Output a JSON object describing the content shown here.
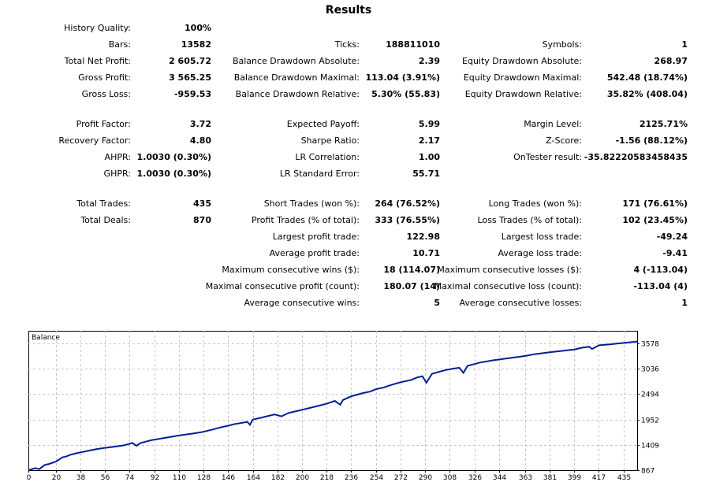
{
  "title": "Results",
  "stats": [
    {
      "label": "History Quality:",
      "value": "100%",
      "col": 0,
      "row": 0
    },
    {
      "label": "Bars:",
      "value": "13582",
      "col": 0,
      "row": 1
    },
    {
      "label": "Ticks:",
      "value": "188811010",
      "col": 1,
      "row": 1
    },
    {
      "label": "Symbols:",
      "value": "1",
      "col": 2,
      "row": 1
    },
    {
      "label": "Total Net Profit:",
      "value": "2 605.72",
      "col": 0,
      "row": 2
    },
    {
      "label": "Balance Drawdown Absolute:",
      "value": "2.39",
      "col": 1,
      "row": 2
    },
    {
      "label": "Equity Drawdown Absolute:",
      "value": "268.97",
      "col": 2,
      "row": 2
    },
    {
      "label": "Gross Profit:",
      "value": "3 565.25",
      "col": 0,
      "row": 3
    },
    {
      "label": "Balance Drawdown Maximal:",
      "value": "113.04 (3.91%)",
      "col": 1,
      "row": 3
    },
    {
      "label": "Equity Drawdown Maximal:",
      "value": "542.48 (18.74%)",
      "col": 2,
      "row": 3
    },
    {
      "label": "Gross Loss:",
      "value": "-959.53",
      "col": 0,
      "row": 4
    },
    {
      "label": "Balance Drawdown Relative:",
      "value": "5.30% (55.83)",
      "col": 1,
      "row": 4
    },
    {
      "label": "Equity Drawdown Relative:",
      "value": "35.82% (408.04)",
      "col": 2,
      "row": 4
    },
    {
      "label": "Profit Factor:",
      "value": "3.72",
      "col": 0,
      "row": 6
    },
    {
      "label": "Expected Payoff:",
      "value": "5.99",
      "col": 1,
      "row": 6
    },
    {
      "label": "Margin Level:",
      "value": "2125.71%",
      "col": 2,
      "row": 6
    },
    {
      "label": "Recovery Factor:",
      "value": "4.80",
      "col": 0,
      "row": 7
    },
    {
      "label": "Sharpe Ratio:",
      "value": "2.17",
      "col": 1,
      "row": 7
    },
    {
      "label": "Z-Score:",
      "value": "-1.56 (88.12%)",
      "col": 2,
      "row": 7
    },
    {
      "label": "AHPR:",
      "value": "1.0030 (0.30%)",
      "col": 0,
      "row": 8
    },
    {
      "label": "LR Correlation:",
      "value": "1.00",
      "col": 1,
      "row": 8
    },
    {
      "label": "OnTester result:",
      "value": "-35.82220583458435",
      "col": 2,
      "row": 8
    },
    {
      "label": "GHPR:",
      "value": "1.0030 (0.30%)",
      "col": 0,
      "row": 9
    },
    {
      "label": "LR Standard Error:",
      "value": "55.71",
      "col": 1,
      "row": 9
    },
    {
      "label": "Total Trades:",
      "value": "435",
      "col": 0,
      "row": 11
    },
    {
      "label": "Short Trades (won %):",
      "value": "264 (76.52%)",
      "col": 1,
      "row": 11
    },
    {
      "label": "Long Trades (won %):",
      "value": "171 (76.61%)",
      "col": 2,
      "row": 11
    },
    {
      "label": "Total Deals:",
      "value": "870",
      "col": 0,
      "row": 12
    },
    {
      "label": "Profit Trades (% of total):",
      "value": "333 (76.55%)",
      "col": 1,
      "row": 12
    },
    {
      "label": "Loss Trades (% of total):",
      "value": "102 (23.45%)",
      "col": 2,
      "row": 12
    },
    {
      "label": "Largest profit trade:",
      "value": "122.98",
      "col": 1,
      "row": 13
    },
    {
      "label": "Largest loss trade:",
      "value": "-49.24",
      "col": 2,
      "row": 13
    },
    {
      "label": "Average profit trade:",
      "value": "10.71",
      "col": 1,
      "row": 14
    },
    {
      "label": "Average loss trade:",
      "value": "-9.41",
      "col": 2,
      "row": 14
    },
    {
      "label": "Maximum consecutive wins ($):",
      "value": "18 (114.07)",
      "col": 1,
      "row": 15
    },
    {
      "label": "Maximum consecutive losses ($):",
      "value": "4 (-113.04)",
      "col": 2,
      "row": 15
    },
    {
      "label": "Maximal consecutive profit (count):",
      "value": "180.07 (14)",
      "col": 1,
      "row": 16
    },
    {
      "label": "Maximal consecutive loss (count):",
      "value": "-113.04 (4)",
      "col": 2,
      "row": 16
    },
    {
      "label": "Average consecutive wins:",
      "value": "5",
      "col": 1,
      "row": 17
    },
    {
      "label": "Average consecutive losses:",
      "value": "1",
      "col": 2,
      "row": 17
    }
  ],
  "chart_data": {
    "type": "line",
    "title": "Balance",
    "xlabel": "",
    "ylabel": "",
    "x_ticks": [
      0,
      20,
      38,
      56,
      74,
      92,
      110,
      128,
      146,
      164,
      182,
      200,
      218,
      236,
      254,
      272,
      290,
      308,
      326,
      344,
      363,
      381,
      399,
      417,
      435
    ],
    "y_ticks": [
      867,
      1409,
      1952,
      2494,
      3036,
      3578
    ],
    "xlim": [
      0,
      445
    ],
    "ylim": [
      867,
      3850
    ],
    "grid": true,
    "line_color": "#001e96",
    "series": [
      {
        "x": [
          0,
          5,
          8,
          12,
          15,
          20,
          25,
          28,
          30,
          35,
          40,
          45,
          50,
          55,
          60,
          65,
          70,
          76,
          79,
          82,
          90,
          100,
          110,
          120,
          128,
          135,
          140,
          146,
          150,
          160,
          162,
          164,
          170,
          180,
          185,
          190,
          200,
          210,
          218,
          224,
          228,
          230,
          236,
          245,
          250,
          254,
          260,
          265,
          272,
          280,
          284,
          288,
          291,
          295,
          300,
          305,
          310,
          315,
          318,
          321,
          325,
          330,
          340,
          350,
          363,
          370,
          381,
          390,
          399,
          405,
          410,
          412,
          417,
          425,
          430,
          435,
          445
        ],
        "y": [
          867,
          910,
          890,
          980,
          1000,
          1050,
          1145,
          1165,
          1190,
          1230,
          1260,
          1290,
          1320,
          1340,
          1360,
          1380,
          1400,
          1450,
          1390,
          1450,
          1510,
          1560,
          1610,
          1650,
          1690,
          1740,
          1780,
          1820,
          1850,
          1900,
          1840,
          1950,
          1990,
          2060,
          2020,
          2090,
          2160,
          2230,
          2290,
          2350,
          2270,
          2370,
          2450,
          2520,
          2550,
          2600,
          2640,
          2690,
          2750,
          2800,
          2850,
          2880,
          2740,
          2930,
          2970,
          3010,
          3040,
          3060,
          2950,
          3100,
          3130,
          3170,
          3220,
          3260,
          3310,
          3350,
          3390,
          3420,
          3450,
          3490,
          3510,
          3460,
          3540,
          3560,
          3575,
          3590,
          3620
        ]
      }
    ]
  }
}
